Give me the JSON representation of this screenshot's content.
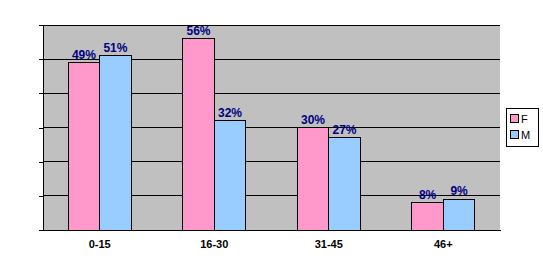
{
  "chart_data": {
    "type": "bar",
    "categories": [
      "0-15",
      "16-30",
      "31-45",
      "46+"
    ],
    "series": [
      {
        "name": "F",
        "color": "#ff99cc",
        "values": [
          49,
          56,
          30,
          8
        ],
        "value_labels": [
          "49%",
          "56%",
          "30%",
          "8%"
        ]
      },
      {
        "name": "M",
        "color": "#99ccff",
        "values": [
          51,
          32,
          27,
          9
        ],
        "value_labels": [
          "51%",
          "32%",
          "27%",
          "9%"
        ]
      }
    ],
    "ylim": [
      0,
      60
    ],
    "yticks": [
      0,
      10,
      20,
      30,
      40,
      50,
      60
    ],
    "grid": true,
    "legend": "right",
    "data_labels": true,
    "tick_labels": "x"
  }
}
